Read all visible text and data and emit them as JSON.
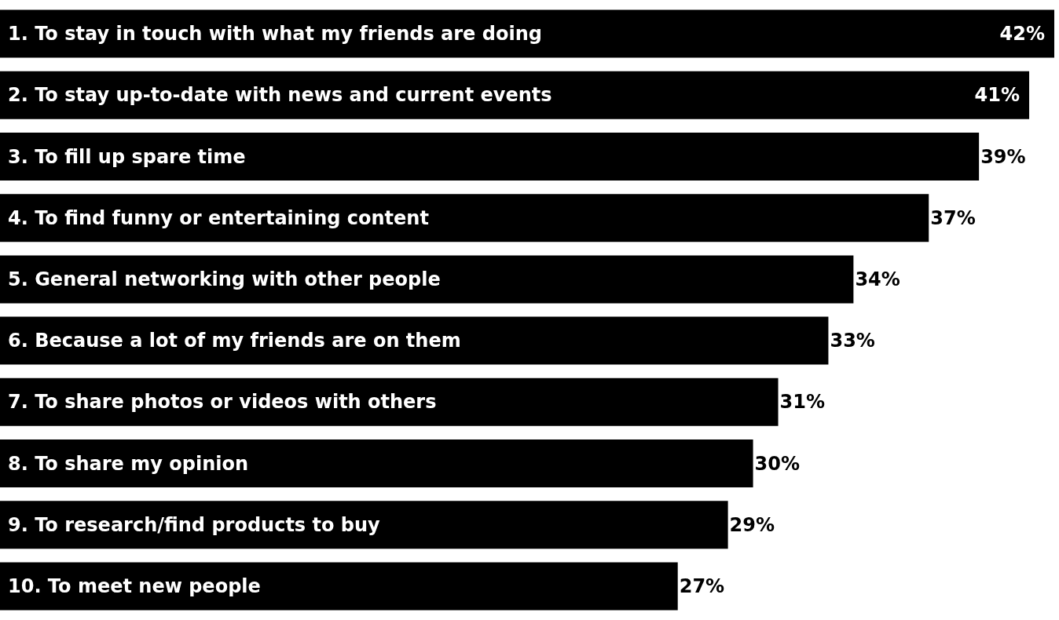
{
  "chart_data": {
    "type": "bar",
    "orientation": "horizontal",
    "categories": [
      "1. To stay in touch with what my friends are doing",
      "2. To stay up-to-date with news and current events",
      "3. To fill up spare time",
      "4. To find funny or entertaining content",
      "5. General networking with other people",
      "6. Because a lot of my friends are on them",
      "7. To share photos or videos with others",
      "8. To share my opinion",
      "9. To research/find products to buy",
      "10. To meet new people"
    ],
    "values": [
      42,
      41,
      39,
      37,
      34,
      33,
      31,
      30,
      29,
      27
    ],
    "value_labels": [
      "42%",
      "41%",
      "39%",
      "37%",
      "34%",
      "33%",
      "31%",
      "30%",
      "29%",
      "27%"
    ],
    "color": "#000000"
  }
}
